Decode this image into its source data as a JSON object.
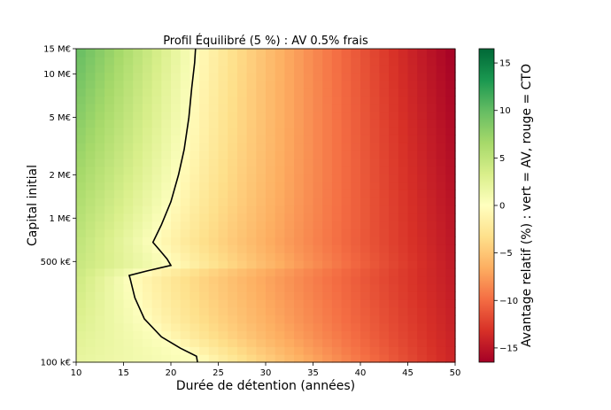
{
  "chart_data": {
    "type": "heatmap",
    "title": "Profil Équilibré (5 %) : AV 0.5% frais",
    "xlabel": "Durée de détention (années)",
    "ylabel": "Capital initial",
    "colorbar_label": "Avantage relatif (%) : vert = AV, rouge = CTO",
    "x_range": [
      10,
      50
    ],
    "y_range_eur": [
      100000,
      15000000
    ],
    "y_scale": "log",
    "color_range": [
      -16.5,
      16.5
    ],
    "colormap": "RdYlGn",
    "x_ticks": [
      {
        "value": 10,
        "label": "10"
      },
      {
        "value": 15,
        "label": "15"
      },
      {
        "value": 20,
        "label": "20"
      },
      {
        "value": 25,
        "label": "25"
      },
      {
        "value": 30,
        "label": "30"
      },
      {
        "value": 35,
        "label": "35"
      },
      {
        "value": 40,
        "label": "40"
      },
      {
        "value": 45,
        "label": "45"
      },
      {
        "value": 50,
        "label": "50"
      }
    ],
    "y_ticks": [
      {
        "value": 100000,
        "label": "100 k€"
      },
      {
        "value": 500000,
        "label": "500 k€"
      },
      {
        "value": 1000000,
        "label": "1 M€"
      },
      {
        "value": 2000000,
        "label": "2 M€"
      },
      {
        "value": 5000000,
        "label": "5 M€"
      },
      {
        "value": 10000000,
        "label": "10 M€"
      },
      {
        "value": 15000000,
        "label": "15 M€"
      }
    ],
    "colorbar_ticks": [
      {
        "value": -15,
        "label": "−15"
      },
      {
        "value": -10,
        "label": "−10"
      },
      {
        "value": -5,
        "label": "−5"
      },
      {
        "value": 0,
        "label": "0"
      },
      {
        "value": 5,
        "label": "5"
      },
      {
        "value": 10,
        "label": "10"
      },
      {
        "value": 15,
        "label": "15"
      }
    ],
    "zero_contour": [
      {
        "capital": 100000,
        "years": 22.8
      },
      {
        "capital": 110000,
        "years": 22.7
      },
      {
        "capital": 125000,
        "years": 21.0
      },
      {
        "capital": 150000,
        "years": 19.0
      },
      {
        "capital": 200000,
        "years": 17.2
      },
      {
        "capital": 280000,
        "years": 16.2
      },
      {
        "capital": 380000,
        "years": 15.7
      },
      {
        "capital": 400000,
        "years": 15.6
      },
      {
        "capital": 430000,
        "years": 17.5
      },
      {
        "capital": 470000,
        "years": 20.0
      },
      {
        "capital": 520000,
        "years": 19.6
      },
      {
        "capital": 600000,
        "years": 18.8
      },
      {
        "capital": 680000,
        "years": 18.1
      },
      {
        "capital": 900000,
        "years": 19.0
      },
      {
        "capital": 1300000,
        "years": 20.0
      },
      {
        "capital": 2000000,
        "years": 20.8
      },
      {
        "capital": 3000000,
        "years": 21.4
      },
      {
        "capital": 5000000,
        "years": 21.9
      },
      {
        "capital": 8000000,
        "years": 22.2
      },
      {
        "capital": 12000000,
        "years": 22.5
      },
      {
        "capital": 15000000,
        "years": 22.6
      }
    ]
  }
}
